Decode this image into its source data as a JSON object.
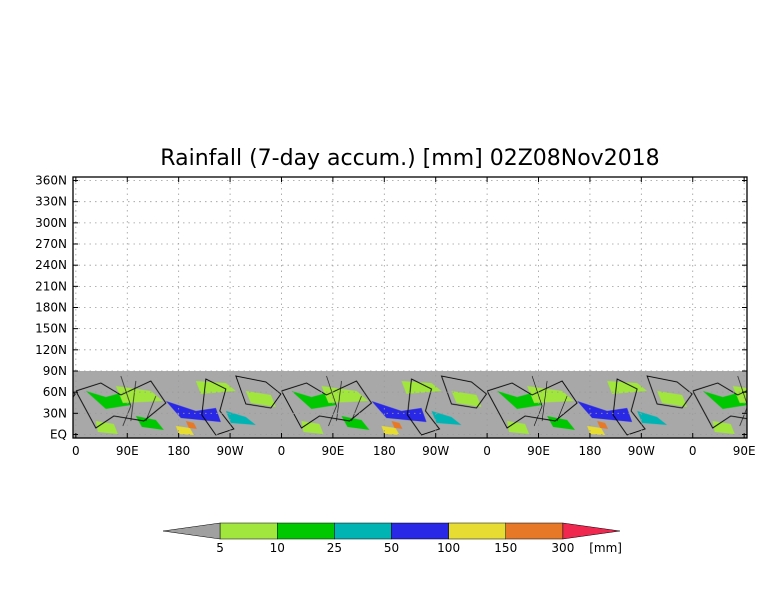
{
  "chart_data": {
    "type": "heatmap",
    "title": "Rainfall (7-day accum.) [mm] 02Z08Nov2018",
    "xlabel": "",
    "ylabel": "",
    "x_tick_labels": [
      "0",
      "90E",
      "180",
      "90W",
      "0",
      "90E",
      "180",
      "90W",
      "0",
      "90E",
      "180",
      "90W",
      "0",
      "90E"
    ],
    "x_ticks_deg": [
      0,
      90,
      180,
      270,
      360,
      450,
      540,
      630,
      720,
      810,
      900,
      990,
      1080,
      1170
    ],
    "xlim": [
      -5,
      1175
    ],
    "y_tick_labels": [
      "EQ",
      "30N",
      "60N",
      "90N",
      "120N",
      "150N",
      "180N",
      "210N",
      "240N",
      "270N",
      "300N",
      "330N",
      "360N"
    ],
    "y_ticks_deg": [
      0,
      30,
      60,
      90,
      120,
      150,
      180,
      210,
      240,
      270,
      300,
      330,
      360
    ],
    "ylim": [
      -5,
      365
    ],
    "data_region_lat": [
      -5,
      90
    ],
    "map_repeat_period_deg": 360,
    "grid": true,
    "colorbar": {
      "unit": "[mm]",
      "levels": [
        "5",
        "10",
        "25",
        "50",
        "100",
        "150",
        "300"
      ],
      "colors": [
        "#a0a0a0",
        "#a0e63c",
        "#00c800",
        "#00b4b4",
        "#2828e6",
        "#e6dc32",
        "#e67828",
        "#f02850"
      ]
    },
    "background_color": "#a8a8a8"
  }
}
